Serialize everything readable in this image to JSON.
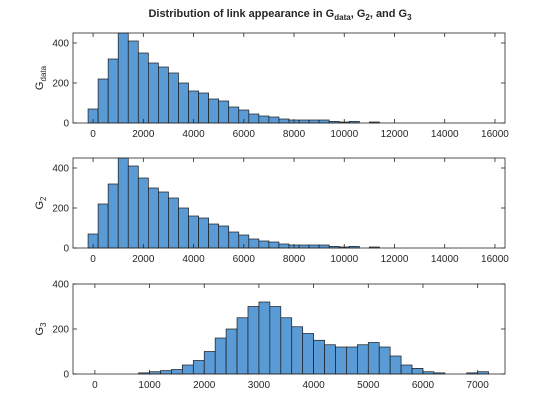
{
  "title": {
    "prefix": "Distribution of link appearance in G",
    "sub1": "data",
    "mid1": ", G",
    "sub2": "2",
    "mid2": ", and G",
    "sub3": "3"
  },
  "style": {
    "bar_fill": "#5b9bd5",
    "bar_edge": "#1a1a1a",
    "axis": "#262626"
  },
  "chart_data": [
    {
      "type": "bar",
      "ylabel_main": "G",
      "ylabel_sub": "data",
      "bin_width": 400,
      "bin_edges_start": -200,
      "values": [
        70,
        220,
        320,
        460,
        410,
        350,
        300,
        280,
        250,
        200,
        160,
        150,
        120,
        110,
        80,
        65,
        45,
        35,
        30,
        20,
        15,
        15,
        15,
        15,
        8,
        5,
        8,
        0,
        5,
        0,
        0,
        0,
        0,
        0,
        0,
        0,
        0,
        0
      ],
      "xlim": [
        -800,
        16400
      ],
      "ylim": [
        0,
        450
      ],
      "xticks": [
        0,
        2000,
        4000,
        6000,
        8000,
        10000,
        12000,
        14000,
        16000
      ],
      "yticks": [
        0,
        200,
        400
      ],
      "grid": false
    },
    {
      "type": "bar",
      "ylabel_main": "G",
      "ylabel_sub": "2",
      "bin_width": 400,
      "bin_edges_start": -200,
      "values": [
        70,
        220,
        320,
        460,
        410,
        350,
        300,
        280,
        250,
        200,
        160,
        150,
        120,
        110,
        80,
        65,
        45,
        35,
        30,
        20,
        15,
        15,
        15,
        15,
        8,
        5,
        8,
        0,
        5,
        0,
        0,
        0,
        0,
        0,
        0,
        0,
        0,
        0
      ],
      "xlim": [
        -800,
        16400
      ],
      "ylim": [
        0,
        450
      ],
      "xticks": [
        0,
        2000,
        4000,
        6000,
        8000,
        10000,
        12000,
        14000,
        16000
      ],
      "yticks": [
        0,
        200,
        400
      ],
      "grid": false
    },
    {
      "type": "bar",
      "ylabel_main": "G",
      "ylabel_sub": "3",
      "bin_width": 200,
      "bin_edges_start": 800,
      "values": [
        5,
        10,
        15,
        20,
        40,
        60,
        100,
        160,
        200,
        250,
        300,
        320,
        300,
        250,
        210,
        180,
        150,
        130,
        120,
        120,
        130,
        140,
        120,
        80,
        40,
        25,
        10,
        5,
        0,
        0,
        5,
        10
      ],
      "xlim": [
        -400,
        7500
      ],
      "ylim": [
        0,
        400
      ],
      "xticks": [
        0,
        1000,
        2000,
        3000,
        4000,
        5000,
        6000,
        7000
      ],
      "yticks": [
        0,
        200,
        400
      ],
      "grid": false
    }
  ]
}
